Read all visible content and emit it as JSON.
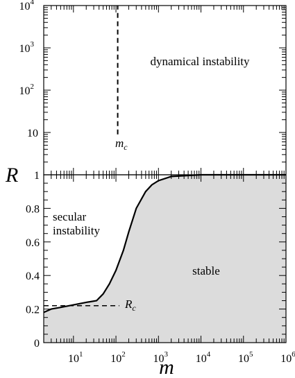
{
  "chart_data": {
    "type": "line",
    "xlabel": "m",
    "ylabel": "R",
    "x_scale": "log",
    "xlim": [
      2,
      1000000
    ],
    "x_ticks": [
      {
        "value": 10,
        "base": "10",
        "exp": "1"
      },
      {
        "value": 100,
        "base": "10",
        "exp": "2"
      },
      {
        "value": 1000,
        "base": "10",
        "exp": "3"
      },
      {
        "value": 10000,
        "base": "10",
        "exp": "4"
      },
      {
        "value": 100000,
        "base": "10",
        "exp": "5"
      },
      {
        "value": 1000000,
        "base": "10",
        "exp": "6"
      }
    ],
    "upper_panel": {
      "y_scale": "log",
      "ylim": [
        1,
        10000
      ],
      "y_ticks": [
        {
          "value": 10,
          "base": "10",
          "exp": ""
        },
        {
          "value": 100,
          "base": "10",
          "exp": "2"
        },
        {
          "value": 1000,
          "base": "10",
          "exp": "3"
        },
        {
          "value": 10000,
          "base": "10",
          "exp": "4"
        }
      ]
    },
    "lower_panel": {
      "y_scale": "linear",
      "ylim": [
        0,
        1
      ],
      "y_ticks": [
        {
          "value": 0,
          "label": "0"
        },
        {
          "value": 0.2,
          "label": "0.2"
        },
        {
          "value": 0.4,
          "label": "0.4"
        },
        {
          "value": 0.6,
          "label": "0.6"
        },
        {
          "value": 0.8,
          "label": "0.8"
        },
        {
          "value": 1,
          "label": "1"
        }
      ]
    },
    "series": [
      {
        "style": "solid",
        "fill": "#dcdcdc",
        "points": [
          [
            2,
            0.18
          ],
          [
            3,
            0.2
          ],
          [
            5,
            0.21
          ],
          [
            10,
            0.225
          ],
          [
            20,
            0.24
          ],
          [
            35,
            0.25
          ],
          [
            50,
            0.29
          ],
          [
            70,
            0.35
          ],
          [
            100,
            0.43
          ],
          [
            150,
            0.55
          ],
          [
            200,
            0.66
          ],
          [
            300,
            0.8
          ],
          [
            500,
            0.9
          ],
          [
            700,
            0.94
          ],
          [
            1000,
            0.965
          ],
          [
            2000,
            0.99
          ],
          [
            10000,
            1.0
          ],
          [
            1000000,
            1.0
          ]
        ]
      }
    ],
    "reference_lines": [
      {
        "name": "m_c",
        "style": "dashed",
        "x": 110,
        "y_range": [
          9,
          10000
        ]
      },
      {
        "name": "R_c",
        "style": "dashed",
        "y": 0.22,
        "x_range": [
          2,
          120
        ]
      }
    ],
    "annotations": {
      "upper_region": "dynamical instability",
      "secular_line1": "secular",
      "secular_line2": "instability",
      "stable": "stable",
      "mc_main": "m",
      "mc_sub": "c",
      "rc_main": "R",
      "rc_sub": "c"
    }
  }
}
